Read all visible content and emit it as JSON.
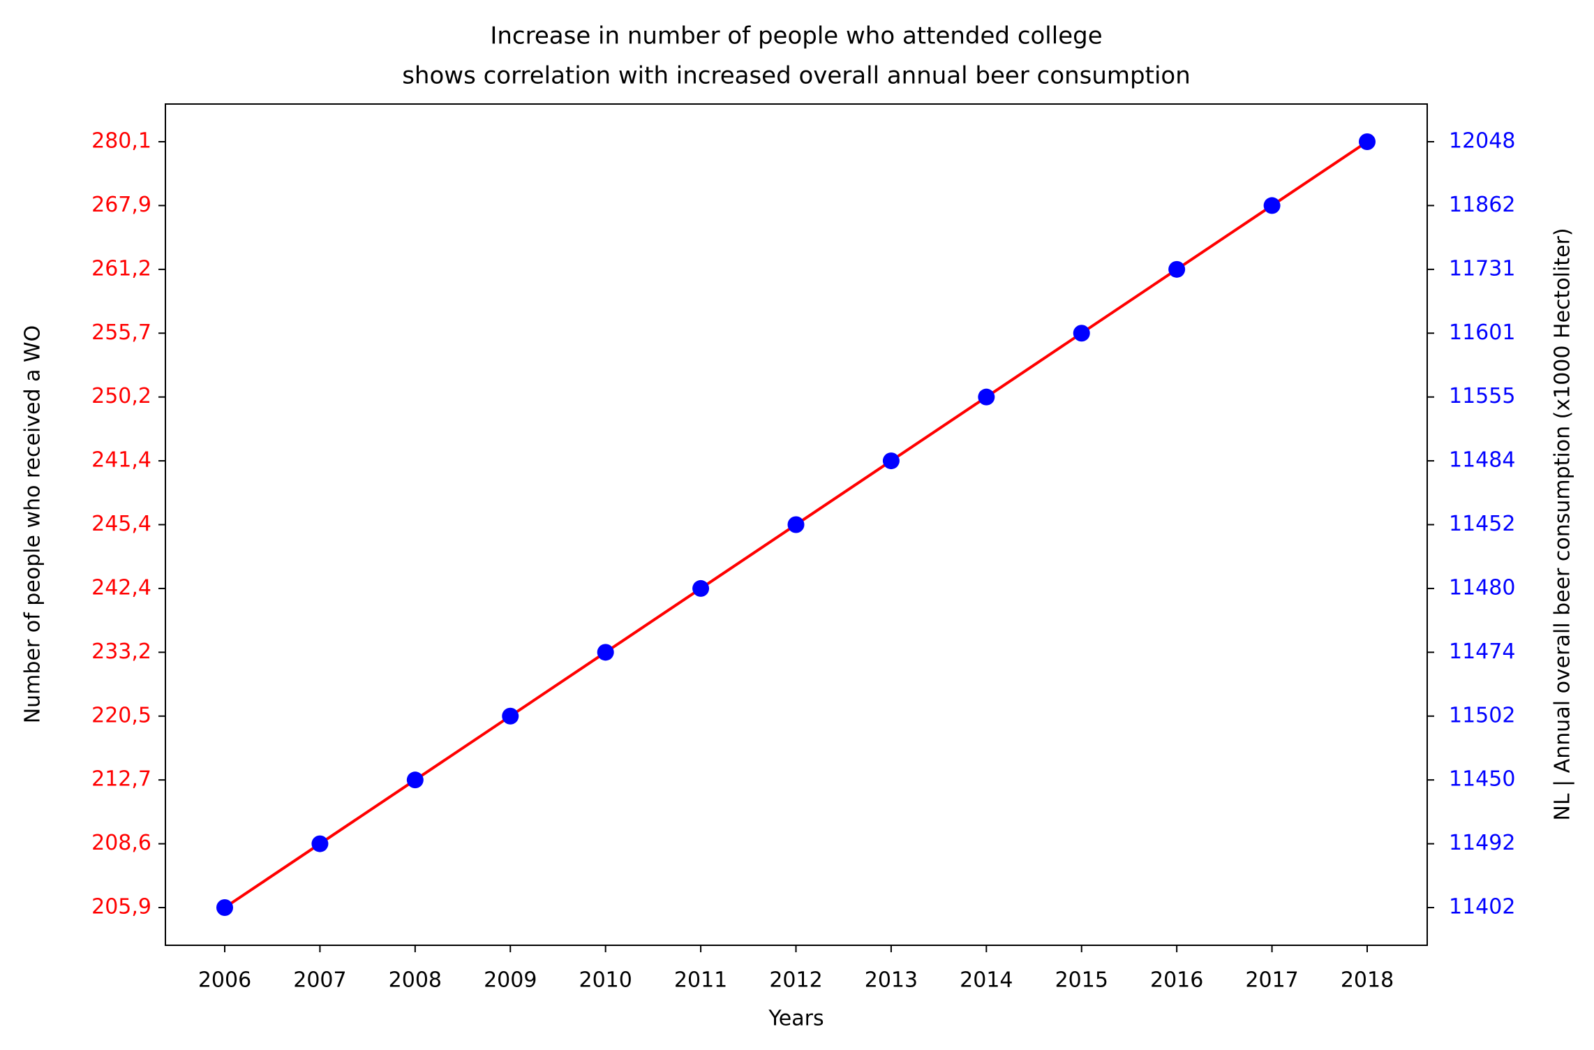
{
  "chart_data": {
    "type": "line",
    "title": [
      "Increase in number of people who attended college",
      "shows correlation with increased overall annual beer consumption"
    ],
    "xlabel": "Years",
    "ylabel": "Number of people who received a WO",
    "y2label": "NL | Annual overall beer consumption (x1000 Hectoliter)",
    "categories": [
      "2006",
      "2007",
      "2008",
      "2009",
      "2010",
      "2011",
      "2012",
      "2013",
      "2014",
      "2015",
      "2016",
      "2017",
      "2018"
    ],
    "ycategories": [
      "205,9",
      "208,6",
      "212,7",
      "220,5",
      "233,2",
      "242,4",
      "245,4",
      "241,4",
      "250,2",
      "255,7",
      "261,2",
      "267,9",
      "280,1"
    ],
    "y2categories": [
      "11402",
      "11492",
      "11450",
      "11502",
      "11474",
      "11480",
      "11452",
      "11484",
      "11555",
      "11601",
      "11731",
      "11862",
      "12048"
    ],
    "series": [
      {
        "name": "WO",
        "color": "#ff0000",
        "style": "line",
        "axis": "y",
        "values": [
          "205,9",
          "208,6",
          "212,7",
          "220,5",
          "233,2",
          "242,4",
          "245,4",
          "241,4",
          "250,2",
          "255,7",
          "261,2",
          "267,9",
          "280,1"
        ]
      },
      {
        "name": "Beer",
        "color": "#0000ff",
        "style": "marker",
        "axis": "y2",
        "values": [
          "11402",
          "11492",
          "11450",
          "11502",
          "11474",
          "11480",
          "11452",
          "11484",
          "11555",
          "11601",
          "11731",
          "11862",
          "12048"
        ]
      }
    ]
  }
}
